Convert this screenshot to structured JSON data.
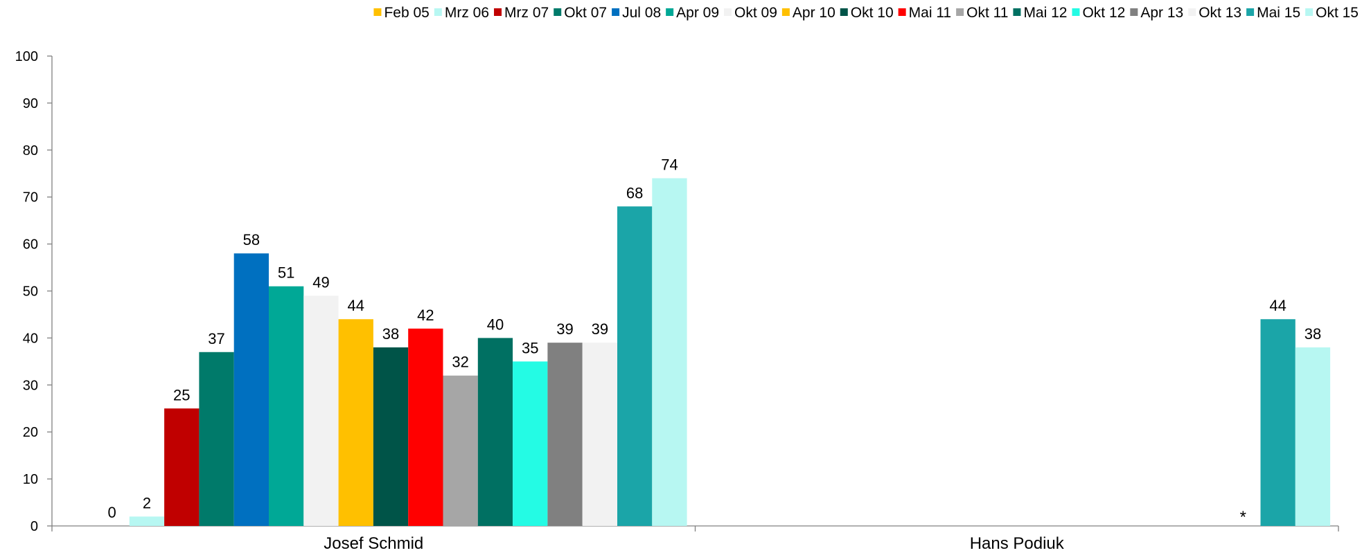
{
  "chart_data": {
    "type": "bar",
    "categories": [
      "Josef Schmid",
      "Hans Podiuk"
    ],
    "ylim": [
      0,
      100
    ],
    "yticks": [
      0,
      10,
      20,
      30,
      40,
      50,
      60,
      70,
      80,
      90,
      100
    ],
    "grid": false,
    "legend": "top",
    "series": [
      {
        "name": "Feb 05",
        "color": "#FFC000",
        "values": [
          0,
          null
        ]
      },
      {
        "name": "Mrz 06",
        "color": "#B7F7F2",
        "values": [
          2,
          null
        ]
      },
      {
        "name": "Mrz 07",
        "color": "#C00000",
        "values": [
          25,
          null
        ]
      },
      {
        "name": "Okt 07",
        "color": "#007A6A",
        "values": [
          37,
          null
        ]
      },
      {
        "name": "Jul 08",
        "color": "#0070C0",
        "values": [
          58,
          null
        ]
      },
      {
        "name": "Apr 09",
        "color": "#00A896",
        "values": [
          51,
          null
        ]
      },
      {
        "name": "Okt 09",
        "color": "#F2F2F2",
        "values": [
          49,
          null
        ]
      },
      {
        "name": "Apr 10",
        "color": "#FFC000",
        "values": [
          44,
          null
        ]
      },
      {
        "name": "Okt 10",
        "color": "#005448",
        "values": [
          38,
          null
        ]
      },
      {
        "name": "Mai 11",
        "color": "#FF0000",
        "values": [
          42,
          null
        ]
      },
      {
        "name": "Okt 11",
        "color": "#A6A6A6",
        "values": [
          32,
          null
        ]
      },
      {
        "name": "Mai 12",
        "color": "#007062",
        "values": [
          40,
          null
        ]
      },
      {
        "name": "Okt 12",
        "color": "#24FBE4",
        "values": [
          35,
          null
        ]
      },
      {
        "name": "Apr 13",
        "color": "#808080",
        "values": [
          39,
          null
        ]
      },
      {
        "name": "Okt 13",
        "color": "#F2F2F2",
        "values": [
          39,
          null
        ]
      },
      {
        "name": "Mai 15",
        "color": "#1BA5A8",
        "values": [
          68,
          44
        ]
      },
      {
        "name": "Okt 15",
        "color": "#B7F7F2",
        "values": [
          74,
          38
        ]
      }
    ],
    "annotations": [
      {
        "text": "*",
        "category": "Hans Podiuk",
        "series": "Okt 13"
      }
    ]
  }
}
